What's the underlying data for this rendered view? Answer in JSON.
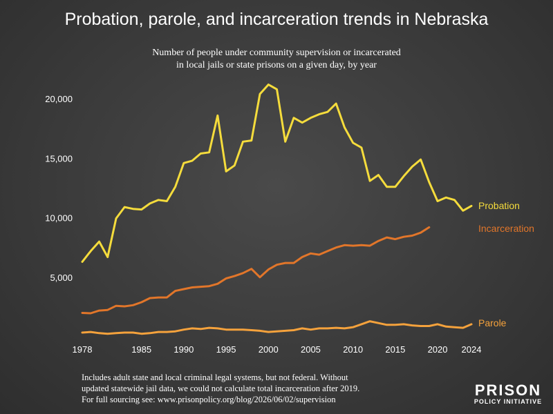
{
  "header": {
    "title": "Probation, parole, and incarceration trends in Nebraska",
    "subtitle_line1": "Number of people under community supervision or incarcerated",
    "subtitle_line2": "in local jails or state prisons on a given day, by year"
  },
  "footnote": {
    "line1": "Includes adult state and local criminal legal systems, but not federal. Without",
    "line2": "updated statewide jail data, we could not calculate total incarceration after 2019.",
    "line3": "For full sourcing see: www.prisonpolicy.org/blog/2026/06/02/supervision"
  },
  "logo": {
    "line1": "PRISON",
    "line2": "POLICY INITIATIVE"
  },
  "colors": {
    "probation": "#f5dc3c",
    "incarceration": "#e2762a",
    "parole": "#f5a23c",
    "background": "#3b3b3b"
  },
  "chart_data": {
    "type": "line",
    "xlim": [
      1978,
      2024
    ],
    "ylim": [
      0,
      21000
    ],
    "x_ticks": [
      "1978",
      "1985",
      "1990",
      "1995",
      "2000",
      "2005",
      "2010",
      "2015",
      "2020",
      "2024"
    ],
    "y_ticks": [
      "5,000",
      "10,000",
      "15,000",
      "20,000"
    ],
    "grid": false,
    "legend": "inline-right",
    "series": [
      {
        "name": "Probation",
        "key": "probation",
        "x": [
          1978,
          1979,
          1980,
          1981,
          1982,
          1983,
          1984,
          1985,
          1986,
          1987,
          1988,
          1989,
          1990,
          1991,
          1992,
          1993,
          1994,
          1995,
          1996,
          1997,
          1998,
          1999,
          2000,
          2001,
          2002,
          2003,
          2004,
          2005,
          2006,
          2007,
          2008,
          2009,
          2010,
          2011,
          2012,
          2013,
          2014,
          2015,
          2016,
          2017,
          2018,
          2019,
          2020,
          2021,
          2022,
          2023,
          2024
        ],
        "y": [
          6300,
          7200,
          8000,
          6700,
          9950,
          10900,
          10750,
          10700,
          11200,
          11500,
          11400,
          12600,
          14600,
          14800,
          15400,
          15500,
          18600,
          13900,
          14400,
          16400,
          16500,
          20400,
          21200,
          20800,
          16400,
          18400,
          18000,
          18400,
          18700,
          18900,
          19600,
          17600,
          16300,
          15900,
          13100,
          13600,
          12600,
          12600,
          13500,
          14300,
          14900,
          13000,
          11400,
          11700,
          11500,
          10600,
          11000
        ]
      },
      {
        "name": "Incarceration",
        "key": "incarceration",
        "x": [
          1978,
          1979,
          1980,
          1981,
          1982,
          1983,
          1984,
          1985,
          1986,
          1987,
          1988,
          1989,
          1990,
          1991,
          1992,
          1993,
          1994,
          1995,
          1996,
          1997,
          1998,
          1999,
          2000,
          2001,
          2002,
          2003,
          2004,
          2005,
          2006,
          2007,
          2008,
          2009,
          2010,
          2011,
          2012,
          2013,
          2014,
          2015,
          2016,
          2017,
          2018,
          2019
        ],
        "y": [
          2000,
          1970,
          2200,
          2250,
          2600,
          2550,
          2650,
          2900,
          3250,
          3300,
          3300,
          3850,
          4000,
          4150,
          4200,
          4250,
          4450,
          4900,
          5100,
          5350,
          5700,
          5000,
          5650,
          6050,
          6200,
          6200,
          6700,
          7000,
          6900,
          7200,
          7500,
          7700,
          7650,
          7700,
          7650,
          8050,
          8350,
          8200,
          8400,
          8500,
          8750,
          9200
        ]
      },
      {
        "name": "Parole",
        "key": "parole",
        "x": [
          1978,
          1979,
          1980,
          1981,
          1982,
          1983,
          1984,
          1985,
          1986,
          1987,
          1988,
          1989,
          1990,
          1991,
          1992,
          1993,
          1994,
          1995,
          1996,
          1997,
          1998,
          1999,
          2000,
          2001,
          2002,
          2003,
          2004,
          2005,
          2006,
          2007,
          2008,
          2009,
          2010,
          2011,
          2012,
          2013,
          2014,
          2015,
          2016,
          2017,
          2018,
          2019,
          2020,
          2021,
          2022,
          2023,
          2024
        ],
        "y": [
          350,
          400,
          300,
          250,
          300,
          350,
          350,
          250,
          300,
          400,
          400,
          450,
          600,
          700,
          650,
          750,
          700,
          600,
          600,
          600,
          550,
          500,
          400,
          450,
          500,
          550,
          700,
          600,
          700,
          700,
          750,
          700,
          800,
          1050,
          1300,
          1150,
          1000,
          1000,
          1050,
          950,
          900,
          900,
          1050,
          850,
          800,
          750,
          1050
        ]
      }
    ]
  }
}
